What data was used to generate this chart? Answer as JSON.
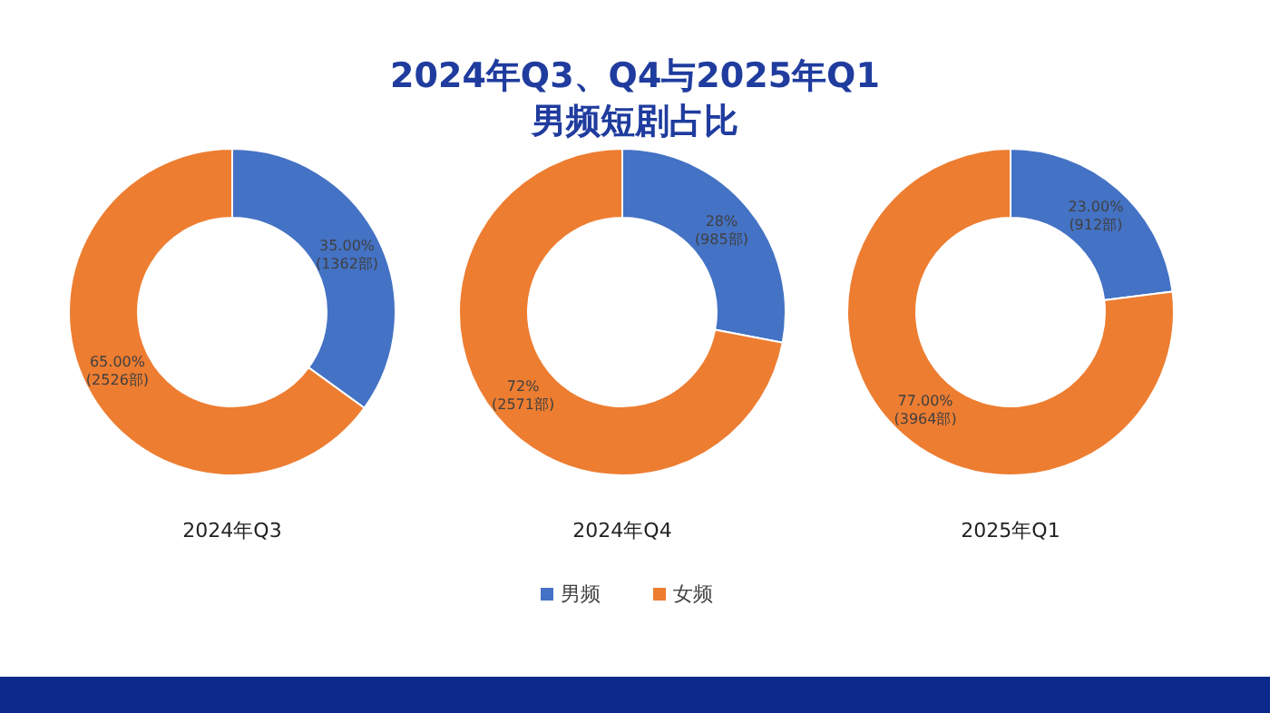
{
  "chart_data": [
    {
      "type": "donut",
      "xlabel": "2024年Q3",
      "values": [
        35,
        65
      ],
      "colors": [
        "#4472c4",
        "#ed7d31"
      ],
      "value_labels": [
        "35.00%\n(1362部)",
        "65.00%\n(2526部)"
      ]
    },
    {
      "type": "donut",
      "title": "2024年Q3、Q4与2025年Q1\n男频短剧占比",
      "xlabel": "2024年Q4",
      "categories": [
        "男频",
        "女频"
      ],
      "values": [
        28,
        72
      ],
      "colors": [
        "#4472c4",
        "#ed7d31"
      ],
      "value_labels": [
        "28%\n(985部)",
        "72%\n(2571部)"
      ],
      "legend": "bottom"
    },
    {
      "type": "donut",
      "xlabel": "2025年Q1",
      "values": [
        23,
        77
      ],
      "colors": [
        "#4472c4",
        "#ed7d31"
      ],
      "value_labels": [
        "23.00%\n(912部)",
        "77.00%\n(3964部)"
      ]
    }
  ]
}
